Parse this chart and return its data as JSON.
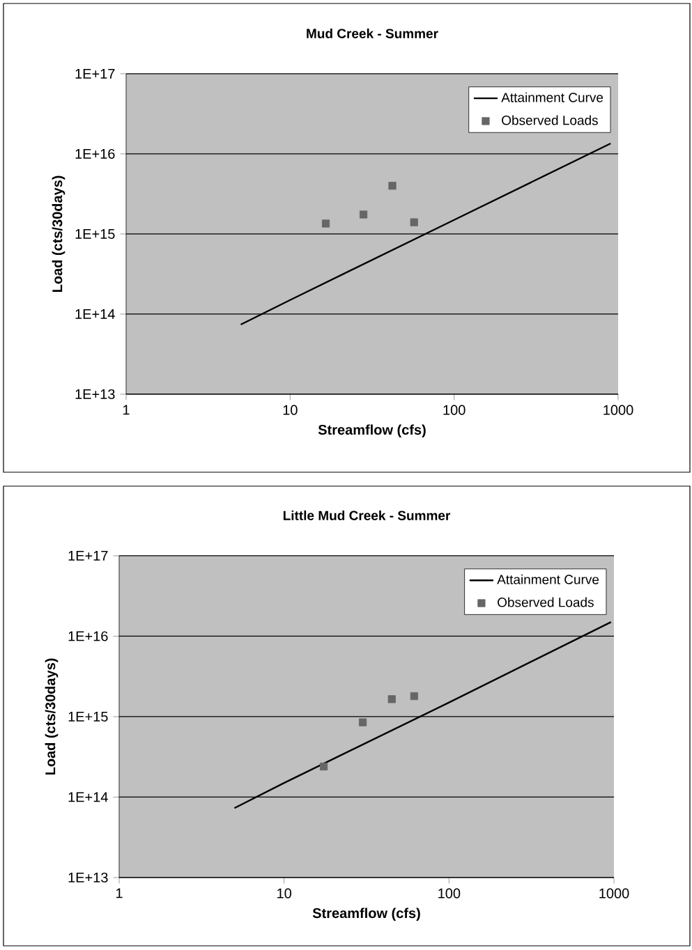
{
  "chart_data": [
    {
      "type": "scatter",
      "title": "Mud Creek - Summer",
      "xlabel": "Streamflow (cfs)",
      "ylabel": "Load (cts/30days)",
      "log": "xy",
      "xlim": [
        1,
        1000
      ],
      "ylim": [
        10000000000000.0,
        1e+17
      ],
      "xticks": [
        1,
        10,
        100,
        1000
      ],
      "yticks": [
        {
          "value": 10000000000000.0,
          "label": "1E+13"
        },
        {
          "value": 100000000000000.0,
          "label": "1E+14"
        },
        {
          "value": 1000000000000000.0,
          "label": "1E+15"
        },
        {
          "value": 1e+16,
          "label": "1E+16"
        },
        {
          "value": 1e+17,
          "label": "1E+17"
        }
      ],
      "grid": "y",
      "legend": "top right",
      "series": [
        {
          "name": "Attainment Curve",
          "type": "line",
          "color": "#000000",
          "marker": "none",
          "line_style": "solid",
          "x": [
            5,
            10,
            100,
            900
          ],
          "values": [
            74000000000000.0,
            150000000000000.0,
            1500000000000000.0,
            1.35e+16
          ]
        },
        {
          "name": "Observed Loads",
          "type": "scatter",
          "color": "#666666",
          "marker": "square",
          "x": [
            16.5,
            28,
            42,
            57
          ],
          "values": [
            1350000000000000.0,
            1750000000000000.0,
            4000000000000000.0,
            1400000000000000.0
          ]
        }
      ]
    },
    {
      "type": "scatter",
      "title": "Little Mud Creek - Summer",
      "xlabel": "Streamflow (cfs)",
      "ylabel": "Load (cts/30days)",
      "log": "xy",
      "xlim": [
        1,
        1000
      ],
      "ylim": [
        10000000000000.0,
        1e+17
      ],
      "xticks": [
        1,
        10,
        100,
        1000
      ],
      "yticks": [
        {
          "value": 10000000000000.0,
          "label": "1E+13"
        },
        {
          "value": 100000000000000.0,
          "label": "1E+14"
        },
        {
          "value": 1000000000000000.0,
          "label": "1E+15"
        },
        {
          "value": 1e+16,
          "label": "1E+16"
        },
        {
          "value": 1e+17,
          "label": "1E+17"
        }
      ],
      "grid": "y",
      "legend": "top right",
      "series": [
        {
          "name": "Attainment Curve",
          "type": "line",
          "color": "#000000",
          "marker": "none",
          "line_style": "solid",
          "x": [
            5,
            10,
            100,
            960
          ],
          "values": [
            73000000000000.0,
            150000000000000.0,
            1500000000000000.0,
            1.5e+16
          ]
        },
        {
          "name": "Observed Loads",
          "type": "scatter",
          "color": "#666666",
          "marker": "square",
          "x": [
            17.4,
            30,
            45,
            61.5
          ],
          "values": [
            240000000000000.0,
            850000000000000.0,
            1650000000000000.0,
            1800000000000000.0
          ]
        }
      ]
    }
  ]
}
